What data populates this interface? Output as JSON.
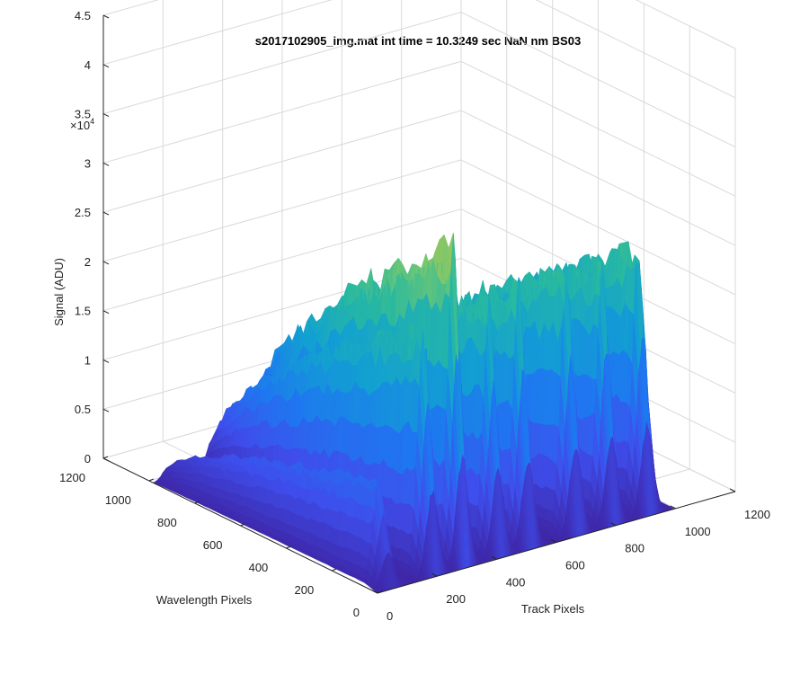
{
  "chart_data": {
    "type": "surface",
    "title": "s2017102905_img.mat int time = 10.3249 sec  NaN nm BS03",
    "xlabel": "Track Pixels",
    "ylabel": "Wavelength Pixels",
    "zlabel": "Signal (ADU)",
    "z_exponent_label": "×10",
    "z_exponent_power": "4",
    "xlim": [
      0,
      1200
    ],
    "ylim": [
      0,
      1200
    ],
    "zlim": [
      0,
      45000
    ],
    "x_ticks": [
      "0",
      "200",
      "400",
      "600",
      "800",
      "1000",
      "1200"
    ],
    "y_ticks": [
      "0",
      "200",
      "400",
      "600",
      "800",
      "1000",
      "1200"
    ],
    "z_ticks": [
      "0",
      "0.5",
      "1",
      "1.5",
      "2",
      "2.5",
      "3",
      "3.5",
      "4",
      "4.5"
    ],
    "grid": true,
    "colormap": "parula",
    "peaks": [
      {
        "track": 50,
        "peak": 11000
      },
      {
        "track": 200,
        "peak": 26000
      },
      {
        "track": 300,
        "peak": 34000
      },
      {
        "track": 420,
        "peak": 27000
      },
      {
        "track": 520,
        "peak": 28000
      },
      {
        "track": 680,
        "peak": 28000
      },
      {
        "track": 800,
        "peak": 27000
      },
      {
        "track": 920,
        "peak": 28000
      }
    ]
  }
}
